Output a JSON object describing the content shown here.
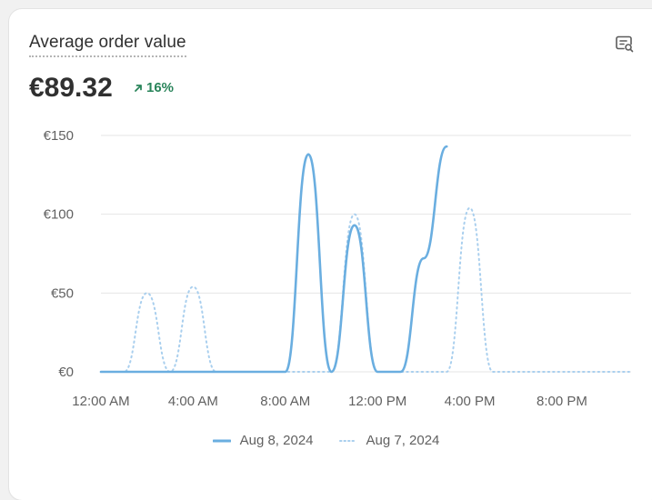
{
  "card": {
    "title": "Average order value",
    "value": "€89.32",
    "delta": "16%",
    "insight_icon": "search-chart-icon",
    "delta_icon": "arrow-up-right-icon"
  },
  "colors": {
    "current": "#6aaee0",
    "previous": "#a9cfee",
    "delta": "#29845a",
    "grid": "#e6e6e6"
  },
  "chart_data": {
    "type": "line",
    "x": [
      "12:00 AM",
      "1:00 AM",
      "2:00 AM",
      "3:00 AM",
      "4:00 AM",
      "5:00 AM",
      "6:00 AM",
      "7:00 AM",
      "8:00 AM",
      "9:00 AM",
      "10:00 AM",
      "11:00 AM",
      "12:00 PM",
      "1:00 PM",
      "2:00 PM",
      "3:00 PM",
      "4:00 PM",
      "5:00 PM",
      "6:00 PM",
      "7:00 PM",
      "8:00 PM",
      "9:00 PM",
      "10:00 PM",
      "11:00 PM"
    ],
    "x_tick_labels": [
      "12:00 AM",
      "4:00 AM",
      "8:00 AM",
      "12:00 PM",
      "4:00 PM",
      "8:00 PM"
    ],
    "y_tick_labels": [
      "€0",
      "€50",
      "€100",
      "€150"
    ],
    "y_ticks": [
      0,
      50,
      100,
      150
    ],
    "ylim": [
      0,
      150
    ],
    "grid": true,
    "legend_position": "bottom",
    "series": [
      {
        "name": "Aug 8, 2024",
        "style": "solid",
        "values": [
          0,
          0,
          0,
          0,
          0,
          0,
          0,
          0,
          0,
          138,
          0,
          93,
          0,
          0,
          72,
          143,
          null,
          null,
          null,
          null,
          null,
          null,
          null,
          null
        ]
      },
      {
        "name": "Aug 7, 2024",
        "style": "dotted",
        "values": [
          0,
          0,
          50,
          0,
          54,
          0,
          0,
          0,
          0,
          0,
          0,
          100,
          0,
          0,
          0,
          0,
          104,
          0,
          0,
          0,
          0,
          0,
          0,
          0
        ]
      }
    ]
  }
}
